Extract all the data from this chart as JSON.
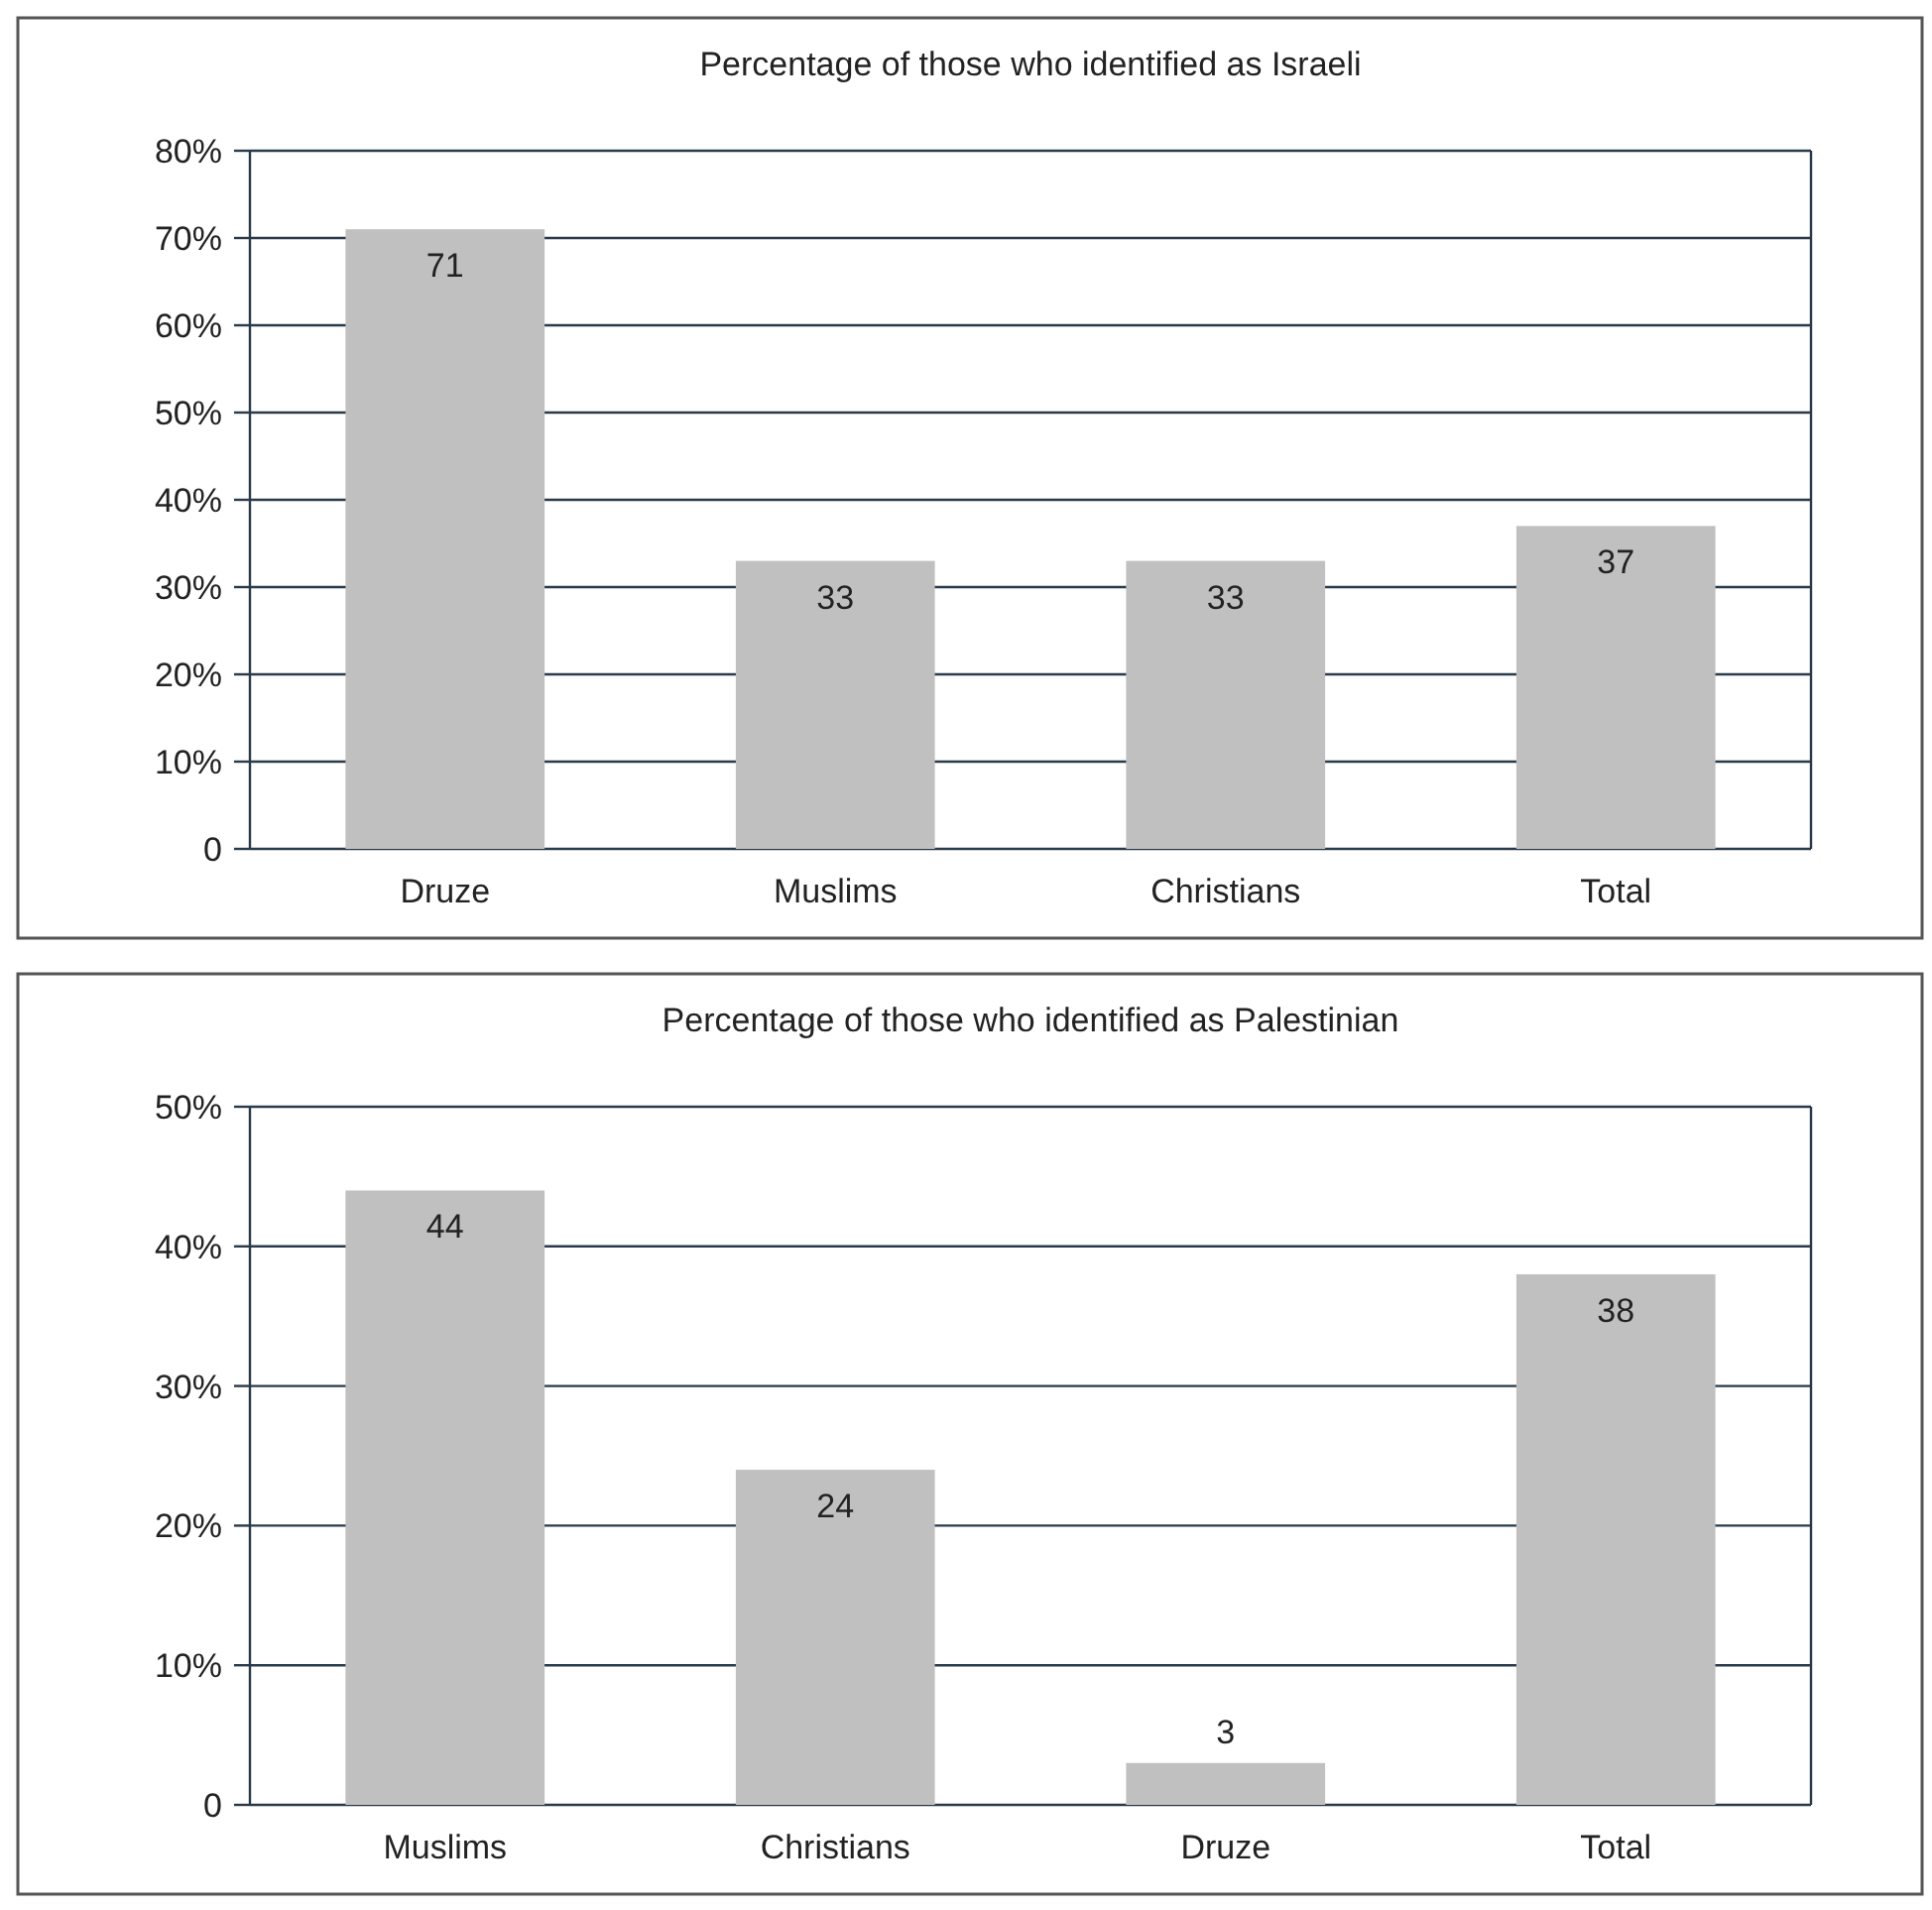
{
  "chart_data": [
    {
      "type": "bar",
      "title": "Percentage of those who identified as Israeli",
      "categories": [
        "Druze",
        "Muslims",
        "Christians",
        "Total"
      ],
      "values": [
        71,
        33,
        33,
        37
      ],
      "color": "#c0c0c0",
      "ylim": [
        0,
        80
      ],
      "yticks": [
        0,
        {
          "value": 10,
          "label": "10%"
        },
        {
          "value": 20,
          "label": "20%"
        },
        {
          "value": 30,
          "label": "30%"
        },
        {
          "value": 40,
          "label": "40%"
        },
        {
          "value": 50,
          "label": "50%"
        },
        {
          "value": 60,
          "label": "60%"
        },
        {
          "value": 70,
          "label": "70%"
        },
        {
          "value": 80,
          "label": "80%"
        }
      ],
      "grid": "y",
      "data_labels": true
    },
    {
      "type": "bar",
      "title": "Percentage of those who identified as Palestinian",
      "categories": [
        "Muslims",
        "Christians",
        "Druze",
        "Total"
      ],
      "values": [
        44,
        24,
        3,
        38
      ],
      "color": "#c0c0c0",
      "ylim": [
        0,
        50
      ],
      "yticks": [
        0,
        {
          "value": 10,
          "label": "10%"
        },
        {
          "value": 20,
          "label": "20%"
        },
        {
          "value": 30,
          "label": "30%"
        },
        {
          "value": 40,
          "label": "40%"
        },
        {
          "value": 50,
          "label": "50%"
        }
      ],
      "grid": "y",
      "data_labels": true
    }
  ]
}
